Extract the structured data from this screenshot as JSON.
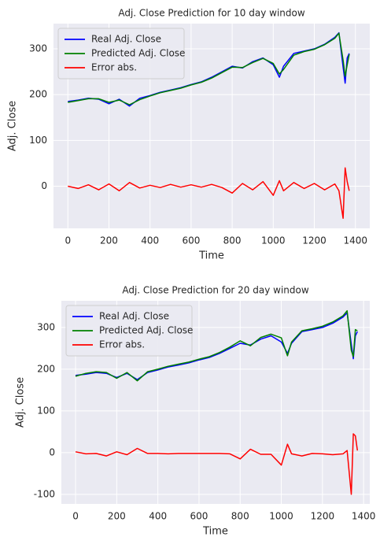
{
  "chart_data": [
    {
      "type": "line",
      "title": "Adj. Close Prediction for 10 day window",
      "xlabel": "Time",
      "ylabel": "Adj. Close",
      "x": [
        0,
        50,
        100,
        150,
        200,
        250,
        300,
        350,
        400,
        450,
        500,
        550,
        600,
        650,
        700,
        750,
        800,
        850,
        900,
        950,
        1000,
        1030,
        1050,
        1100,
        1150,
        1200,
        1250,
        1300,
        1320,
        1340,
        1350,
        1360,
        1370
      ],
      "series": [
        {
          "name": "Real Adj. Close",
          "color": "#0000ff",
          "values": [
            185,
            188,
            192,
            190,
            180,
            190,
            175,
            192,
            198,
            205,
            210,
            215,
            222,
            228,
            238,
            250,
            262,
            258,
            272,
            280,
            265,
            238,
            262,
            290,
            295,
            300,
            310,
            325,
            335,
            260,
            225,
            280,
            290
          ]
        },
        {
          "name": "Predicted Adj. Close",
          "color": "#008000",
          "values": [
            183,
            187,
            191,
            191,
            183,
            188,
            178,
            189,
            197,
            204,
            209,
            214,
            221,
            227,
            236,
            248,
            260,
            259,
            270,
            279,
            268,
            245,
            255,
            286,
            294,
            299,
            309,
            323,
            334,
            275,
            240,
            265,
            288
          ]
        },
        {
          "name": "Error abs.",
          "color": "#ff0000",
          "values": [
            0,
            -5,
            3,
            -8,
            5,
            -10,
            8,
            -4,
            2,
            -3,
            4,
            -2,
            3,
            -2,
            4,
            -3,
            -15,
            6,
            -8,
            10,
            -20,
            12,
            -10,
            8,
            -5,
            6,
            -8,
            5,
            -10,
            -70,
            40,
            10,
            -10
          ]
        }
      ],
      "xlim": [
        -70,
        1470
      ],
      "xticks": [
        0,
        200,
        400,
        600,
        800,
        1000,
        1200,
        1400
      ],
      "ylim": [
        -92,
        355
      ],
      "yticks": [
        0,
        100,
        200,
        300
      ],
      "grid": true,
      "legend": "upper left"
    },
    {
      "type": "line",
      "title": "Adj. Close Prediction for 20 day window",
      "xlabel": "Time",
      "ylabel": "Adj. Close",
      "x": [
        0,
        50,
        100,
        150,
        200,
        250,
        300,
        350,
        400,
        450,
        500,
        550,
        600,
        650,
        700,
        750,
        800,
        850,
        900,
        950,
        1000,
        1030,
        1050,
        1100,
        1150,
        1200,
        1250,
        1300,
        1320,
        1340,
        1350,
        1360,
        1370
      ],
      "series": [
        {
          "name": "Real Adj. Close",
          "color": "#0000ff",
          "values": [
            185,
            188,
            192,
            190,
            180,
            190,
            175,
            192,
            198,
            205,
            210,
            215,
            222,
            228,
            238,
            250,
            262,
            258,
            272,
            280,
            265,
            238,
            262,
            290,
            295,
            300,
            310,
            325,
            335,
            260,
            225,
            280,
            290
          ]
        },
        {
          "name": "Predicted Adj. Close",
          "color": "#008000",
          "values": [
            183,
            190,
            194,
            192,
            178,
            192,
            172,
            194,
            200,
            207,
            212,
            217,
            224,
            230,
            240,
            253,
            268,
            256,
            276,
            284,
            275,
            232,
            265,
            292,
            297,
            303,
            313,
            328,
            340,
            245,
            230,
            295,
            292
          ]
        },
        {
          "name": "Error abs.",
          "color": "#ff0000",
          "values": [
            2,
            -3,
            -2,
            -8,
            2,
            -5,
            10,
            -2,
            -2,
            -3,
            -2,
            -2,
            -2,
            -2,
            -2,
            -3,
            -15,
            8,
            -4,
            -4,
            -30,
            20,
            -3,
            -8,
            -2,
            -3,
            -5,
            -3,
            5,
            -100,
            45,
            40,
            5
          ]
        }
      ],
      "xlim": [
        -69,
        1430
      ],
      "xticks": [
        0,
        200,
        400,
        600,
        800,
        1000,
        1200,
        1400
      ],
      "ylim": [
        -123,
        364
      ],
      "yticks": [
        -100,
        0,
        100,
        200,
        300
      ],
      "grid": true,
      "legend": "upper left"
    }
  ]
}
